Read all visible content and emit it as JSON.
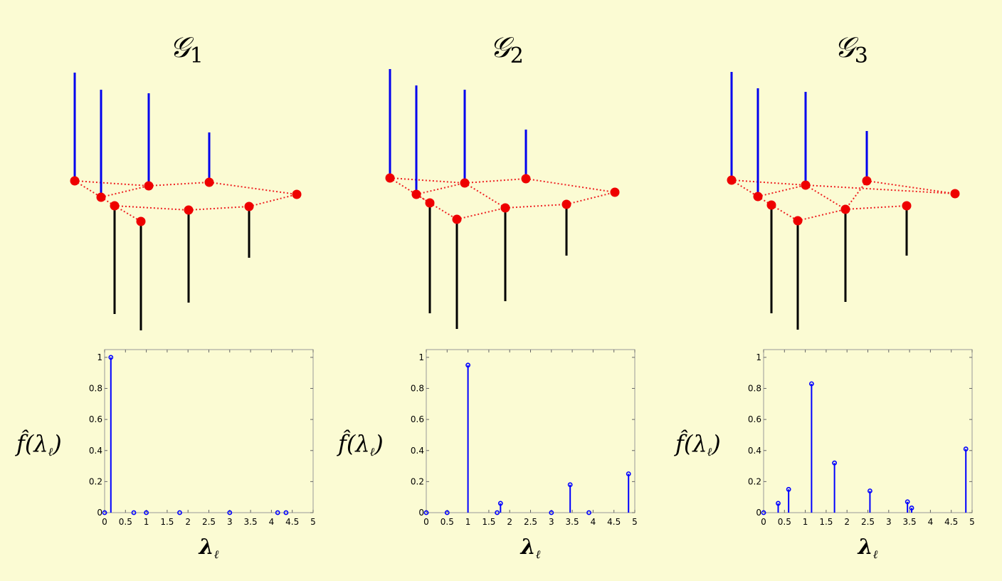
{
  "panels": [
    {
      "title": "𝒢",
      "subscript": "1",
      "graph": {
        "vertices": [
          {
            "x": 105,
            "y": 254,
            "signal": 152
          },
          {
            "x": 142,
            "y": 277,
            "signal": 151
          },
          {
            "x": 209,
            "y": 261,
            "signal": 130
          },
          {
            "x": 294,
            "y": 256,
            "signal": 70
          },
          {
            "x": 417,
            "y": 273,
            "signal": 0
          },
          {
            "x": 161,
            "y": 289,
            "signal": -152
          },
          {
            "x": 198,
            "y": 311,
            "signal": -153
          },
          {
            "x": 265,
            "y": 295,
            "signal": -130
          },
          {
            "x": 350,
            "y": 290,
            "signal": -72
          }
        ],
        "edges": [
          [
            0,
            1
          ],
          [
            0,
            2
          ],
          [
            1,
            2
          ],
          [
            2,
            3
          ],
          [
            3,
            4
          ],
          [
            1,
            5
          ],
          [
            5,
            6
          ],
          [
            5,
            7
          ],
          [
            7,
            8
          ],
          [
            8,
            4
          ]
        ]
      },
      "axes": {
        "left": 147,
        "top": 491,
        "right": 440,
        "bottom": 720
      }
    },
    {
      "title": "𝒢",
      "subscript": "2",
      "graph": {
        "vertices": [
          {
            "x": 548,
            "y": 250,
            "signal": 153
          },
          {
            "x": 585,
            "y": 273,
            "signal": 153
          },
          {
            "x": 653,
            "y": 257,
            "signal": 131
          },
          {
            "x": 739,
            "y": 251,
            "signal": 69
          },
          {
            "x": 864,
            "y": 270,
            "signal": 0
          },
          {
            "x": 604,
            "y": 285,
            "signal": -155
          },
          {
            "x": 642,
            "y": 308,
            "signal": -154
          },
          {
            "x": 710,
            "y": 292,
            "signal": -131
          },
          {
            "x": 796,
            "y": 287,
            "signal": -72
          }
        ],
        "edges": [
          [
            0,
            2
          ],
          [
            0,
            5
          ],
          [
            1,
            5
          ],
          [
            1,
            2
          ],
          [
            2,
            3
          ],
          [
            3,
            4
          ],
          [
            2,
            7
          ],
          [
            5,
            6
          ],
          [
            6,
            7
          ],
          [
            7,
            8
          ],
          [
            8,
            4
          ]
        ]
      },
      "axes": {
        "left": 599,
        "top": 491,
        "right": 892,
        "bottom": 720
      }
    },
    {
      "title": "𝒢",
      "subscript": "3",
      "graph": {
        "vertices": [
          {
            "x": 1028,
            "y": 253,
            "signal": 152
          },
          {
            "x": 1065,
            "y": 276,
            "signal": 152
          },
          {
            "x": 1132,
            "y": 260,
            "signal": 131
          },
          {
            "x": 1218,
            "y": 254,
            "signal": 70
          },
          {
            "x": 1342,
            "y": 272,
            "signal": 0
          },
          {
            "x": 1084,
            "y": 288,
            "signal": -152
          },
          {
            "x": 1121,
            "y": 310,
            "signal": -153
          },
          {
            "x": 1188,
            "y": 294,
            "signal": -130
          },
          {
            "x": 1274,
            "y": 289,
            "signal": -70
          }
        ],
        "edges": [
          [
            0,
            1
          ],
          [
            0,
            2
          ],
          [
            1,
            5
          ],
          [
            1,
            2
          ],
          [
            2,
            7
          ],
          [
            2,
            4
          ],
          [
            3,
            4
          ],
          [
            3,
            7
          ],
          [
            5,
            6
          ],
          [
            6,
            7
          ],
          [
            7,
            8
          ]
        ]
      },
      "axes": {
        "left": 1073,
        "top": 491,
        "right": 1366,
        "bottom": 720
      }
    }
  ],
  "chart_data": [
    {
      "type": "stem",
      "title": "𝒢1",
      "xlabel": "λℓ",
      "ylabel": "f̂(λℓ)",
      "xlim": [
        0,
        5
      ],
      "ylim": [
        0,
        1.05
      ],
      "xticks": [
        "0",
        "0.5",
        "1",
        "1.5",
        "2",
        "2.5",
        "3",
        "3.5",
        "4",
        "4.5",
        "5"
      ],
      "yticks": [
        "0",
        "0.2",
        "0.4",
        "0.6",
        "0.8",
        "1"
      ],
      "x": [
        0,
        0.15,
        0.7,
        1.0,
        1.8,
        3.0,
        4.15,
        4.35
      ],
      "y": [
        0,
        1.0,
        0,
        0,
        0,
        0,
        0,
        0
      ]
    },
    {
      "type": "stem",
      "title": "𝒢2",
      "xlabel": "λℓ",
      "ylabel": "f̂(λℓ)",
      "xlim": [
        0,
        5
      ],
      "ylim": [
        0,
        1.05
      ],
      "xticks": [
        "0",
        "0.5",
        "1",
        "1.5",
        "2",
        "2.5",
        "3",
        "3.5",
        "4",
        "4.5",
        "5"
      ],
      "yticks": [
        "0",
        "0.2",
        "0.4",
        "0.6",
        "0.8",
        "1"
      ],
      "x": [
        0,
        0.5,
        1.0,
        1.7,
        1.78,
        3.0,
        3.45,
        3.9,
        4.85
      ],
      "y": [
        0,
        0,
        0.95,
        0,
        0.06,
        0,
        0.18,
        0,
        0.25
      ]
    },
    {
      "type": "stem",
      "title": "𝒢3",
      "xlabel": "λℓ",
      "ylabel": "f̂(λℓ)",
      "xlim": [
        0,
        5
      ],
      "ylim": [
        0,
        1.05
      ],
      "xticks": [
        "0",
        "0.5",
        "1",
        "1.5",
        "2",
        "2.5",
        "3",
        "3.5",
        "4",
        "4.5",
        "5"
      ],
      "yticks": [
        "0",
        "0.2",
        "0.4",
        "0.6",
        "0.8",
        "1"
      ],
      "x": [
        0,
        0.35,
        0.6,
        1.15,
        1.7,
        2.55,
        3.45,
        3.55,
        4.85
      ],
      "y": [
        0,
        0.06,
        0.15,
        0.83,
        0.32,
        0.14,
        0.07,
        0.03,
        0.41
      ]
    }
  ],
  "colors": {
    "background": "#fbfbd3",
    "positive_signal": "#0000ee",
    "negative_signal": "#000000",
    "vertex": "#ee0000",
    "edge": "#ee2222",
    "stem": "#0000ff"
  }
}
